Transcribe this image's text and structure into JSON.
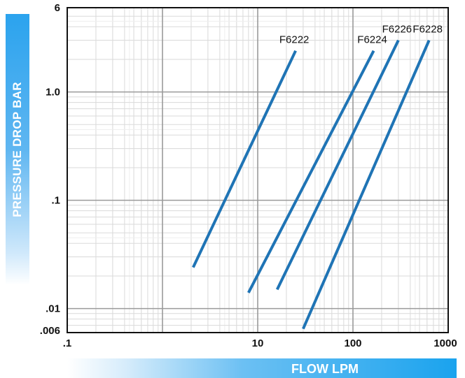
{
  "chart_data": {
    "type": "line",
    "xscale": "log",
    "yscale": "log",
    "xlim": [
      0.1,
      1000
    ],
    "ylim": [
      0.006,
      6
    ],
    "grid": true,
    "xlabel": "FLOW LPM",
    "ylabel": "PRESSURE DROP BAR",
    "x_ticks": [
      {
        "value": 0.1,
        "label": ".1"
      },
      {
        "value": 10,
        "label": "10"
      },
      {
        "value": 100,
        "label": "100"
      },
      {
        "value": 1000,
        "label": "1000"
      }
    ],
    "y_ticks": [
      {
        "value": 6,
        "label": "6"
      },
      {
        "value": 1,
        "label": "1.0"
      },
      {
        "value": 0.1,
        "label": ".1"
      },
      {
        "value": 0.01,
        "label": ".01"
      },
      {
        "value": 0.006,
        "label": ".006"
      }
    ],
    "series_color": "#1f74b5",
    "series": [
      {
        "name": "F6222",
        "x": [
          2.1,
          25
        ],
        "y": [
          0.024,
          2.4
        ]
      },
      {
        "name": "F6224",
        "x": [
          8,
          165
        ],
        "y": [
          0.014,
          2.4
        ]
      },
      {
        "name": "F6226",
        "x": [
          16,
          300
        ],
        "y": [
          0.015,
          3.0
        ]
      },
      {
        "name": "F6228",
        "x": [
          30,
          630
        ],
        "y": [
          0.0065,
          3.0
        ]
      }
    ]
  }
}
